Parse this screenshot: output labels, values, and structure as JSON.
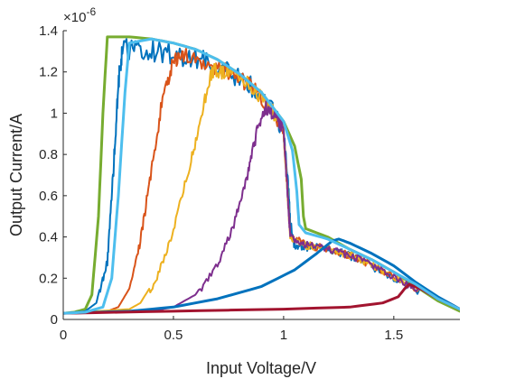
{
  "chart_data": {
    "type": "line",
    "title": "",
    "xlabel": "Input Voltage/V",
    "ylabel": "Output Current/A",
    "y_exponent_base": "×10",
    "y_exponent_power": "-6",
    "xlim": [
      0,
      1.8
    ],
    "ylim": [
      0,
      1.4
    ],
    "xticks": [
      0,
      0.5,
      1,
      1.5
    ],
    "xtick_labels": [
      "0",
      "0.5",
      "1",
      "1.5"
    ],
    "yticks": [
      0,
      0.2,
      0.4,
      0.6,
      0.8,
      1,
      1.2,
      1.4
    ],
    "ytick_labels": [
      "0",
      "0.2",
      "0.4",
      "0.6",
      "0.8",
      "1",
      "1.2",
      "1.4"
    ],
    "grid": false,
    "legend": "none",
    "series": [
      {
        "color": "#77AC30",
        "noise": 0,
        "points": [
          [
            0,
            0.03
          ],
          [
            0.05,
            0.035
          ],
          [
            0.1,
            0.05
          ],
          [
            0.13,
            0.12
          ],
          [
            0.16,
            0.5
          ],
          [
            0.18,
            1.0
          ],
          [
            0.2,
            1.37
          ],
          [
            0.3,
            1.37
          ],
          [
            0.4,
            1.36
          ],
          [
            0.5,
            1.34
          ],
          [
            0.6,
            1.31
          ],
          [
            0.7,
            1.26
          ],
          [
            0.8,
            1.19
          ],
          [
            0.9,
            1.1
          ],
          [
            1.0,
            0.96
          ],
          [
            1.05,
            0.84
          ],
          [
            1.08,
            0.68
          ],
          [
            1.09,
            0.5
          ],
          [
            1.1,
            0.44
          ],
          [
            1.2,
            0.4
          ],
          [
            1.3,
            0.34
          ],
          [
            1.4,
            0.29
          ],
          [
            1.5,
            0.23
          ],
          [
            1.6,
            0.16
          ],
          [
            1.7,
            0.09
          ],
          [
            1.8,
            0.04
          ]
        ]
      },
      {
        "color": "#0072BD",
        "noise": 0.06,
        "points": [
          [
            0,
            0.03
          ],
          [
            0.1,
            0.04
          ],
          [
            0.15,
            0.08
          ],
          [
            0.2,
            0.3
          ],
          [
            0.23,
            0.8
          ],
          [
            0.25,
            1.2
          ],
          [
            0.27,
            1.36
          ],
          [
            0.35,
            1.36
          ],
          [
            0.45,
            1.35
          ],
          [
            0.55,
            1.33
          ],
          [
            0.65,
            1.3
          ],
          [
            0.75,
            1.25
          ],
          [
            0.85,
            1.18
          ],
          [
            0.95,
            1.06
          ],
          [
            1.0,
            0.95
          ],
          [
            1.02,
            0.7
          ],
          [
            1.03,
            0.5
          ],
          [
            1.05,
            0.38
          ],
          [
            1.1,
            0.38
          ],
          [
            1.2,
            0.36
          ],
          [
            1.3,
            0.33
          ],
          [
            1.4,
            0.28
          ],
          [
            1.5,
            0.22
          ],
          [
            1.6,
            0.16
          ],
          [
            1.7,
            0.1
          ],
          [
            1.8,
            0.05
          ]
        ]
      },
      {
        "color": "#D95319",
        "noise": 0.05,
        "points": [
          [
            0,
            0.03
          ],
          [
            0.2,
            0.04
          ],
          [
            0.25,
            0.06
          ],
          [
            0.3,
            0.15
          ],
          [
            0.35,
            0.4
          ],
          [
            0.4,
            0.75
          ],
          [
            0.45,
            1.1
          ],
          [
            0.5,
            1.3
          ],
          [
            0.55,
            1.33
          ],
          [
            0.65,
            1.29
          ],
          [
            0.75,
            1.24
          ],
          [
            0.85,
            1.17
          ],
          [
            0.95,
            1.05
          ],
          [
            1.0,
            0.95
          ],
          [
            1.02,
            0.6
          ],
          [
            1.03,
            0.42
          ],
          [
            1.1,
            0.38
          ],
          [
            1.2,
            0.36
          ],
          [
            1.3,
            0.33
          ],
          [
            1.4,
            0.28
          ],
          [
            1.5,
            0.22
          ],
          [
            1.6,
            0.16
          ],
          [
            1.7,
            0.1
          ],
          [
            1.8,
            0.05
          ]
        ]
      },
      {
        "color": "#EDB120",
        "noise": 0.05,
        "points": [
          [
            0,
            0.03
          ],
          [
            0.3,
            0.05
          ],
          [
            0.35,
            0.08
          ],
          [
            0.42,
            0.2
          ],
          [
            0.5,
            0.45
          ],
          [
            0.58,
            0.8
          ],
          [
            0.64,
            1.1
          ],
          [
            0.68,
            1.25
          ],
          [
            0.75,
            1.24
          ],
          [
            0.85,
            1.17
          ],
          [
            0.95,
            1.05
          ],
          [
            1.0,
            0.95
          ],
          [
            1.02,
            0.6
          ],
          [
            1.03,
            0.42
          ],
          [
            1.1,
            0.38
          ],
          [
            1.2,
            0.36
          ],
          [
            1.3,
            0.33
          ],
          [
            1.4,
            0.28
          ],
          [
            1.5,
            0.22
          ],
          [
            1.6,
            0.16
          ],
          [
            1.7,
            0.1
          ],
          [
            1.8,
            0.05
          ]
        ]
      },
      {
        "color": "#7E2F8E",
        "noise": 0.05,
        "points": [
          [
            0,
            0.03
          ],
          [
            0.4,
            0.04
          ],
          [
            0.5,
            0.06
          ],
          [
            0.6,
            0.12
          ],
          [
            0.7,
            0.28
          ],
          [
            0.78,
            0.5
          ],
          [
            0.84,
            0.75
          ],
          [
            0.88,
            0.95
          ],
          [
            0.92,
            1.07
          ],
          [
            0.96,
            1.02
          ],
          [
            1.0,
            0.95
          ],
          [
            1.02,
            0.6
          ],
          [
            1.03,
            0.42
          ],
          [
            1.1,
            0.38
          ],
          [
            1.2,
            0.36
          ],
          [
            1.3,
            0.33
          ],
          [
            1.4,
            0.28
          ],
          [
            1.5,
            0.22
          ],
          [
            1.6,
            0.16
          ],
          [
            1.7,
            0.1
          ],
          [
            1.8,
            0.05
          ]
        ]
      },
      {
        "color": "#0072BD",
        "noise": 0,
        "points": [
          [
            0,
            0.03
          ],
          [
            0.3,
            0.04
          ],
          [
            0.5,
            0.06
          ],
          [
            0.7,
            0.1
          ],
          [
            0.9,
            0.16
          ],
          [
            1.05,
            0.24
          ],
          [
            1.15,
            0.32
          ],
          [
            1.22,
            0.38
          ],
          [
            1.25,
            0.39
          ],
          [
            1.3,
            0.37
          ],
          [
            1.4,
            0.32
          ],
          [
            1.5,
            0.26
          ],
          [
            1.6,
            0.18
          ],
          [
            1.7,
            0.11
          ],
          [
            1.8,
            0.05
          ]
        ]
      },
      {
        "color": "#A2142F",
        "noise": 0,
        "points": [
          [
            0,
            0.03
          ],
          [
            0.5,
            0.04
          ],
          [
            1.0,
            0.05
          ],
          [
            1.3,
            0.06
          ],
          [
            1.45,
            0.08
          ],
          [
            1.52,
            0.11
          ],
          [
            1.55,
            0.15
          ],
          [
            1.57,
            0.17
          ],
          [
            1.62,
            0.15
          ],
          [
            1.7,
            0.1
          ],
          [
            1.8,
            0.05
          ]
        ]
      },
      {
        "color": "#4DBEEE",
        "noise": 0,
        "points": [
          [
            0,
            0.03
          ],
          [
            0.1,
            0.035
          ],
          [
            0.18,
            0.06
          ],
          [
            0.22,
            0.2
          ],
          [
            0.25,
            0.6
          ],
          [
            0.28,
            1.1
          ],
          [
            0.3,
            1.34
          ],
          [
            0.4,
            1.36
          ],
          [
            0.5,
            1.34
          ],
          [
            0.6,
            1.31
          ],
          [
            0.7,
            1.26
          ],
          [
            0.8,
            1.19
          ],
          [
            0.9,
            1.1
          ],
          [
            1.0,
            0.96
          ],
          [
            1.04,
            0.82
          ],
          [
            1.06,
            0.62
          ],
          [
            1.07,
            0.46
          ],
          [
            1.1,
            0.42
          ],
          [
            1.2,
            0.39
          ],
          [
            1.3,
            0.34
          ],
          [
            1.4,
            0.29
          ],
          [
            1.5,
            0.23
          ],
          [
            1.6,
            0.17
          ],
          [
            1.7,
            0.1
          ],
          [
            1.8,
            0.05
          ]
        ]
      }
    ]
  }
}
